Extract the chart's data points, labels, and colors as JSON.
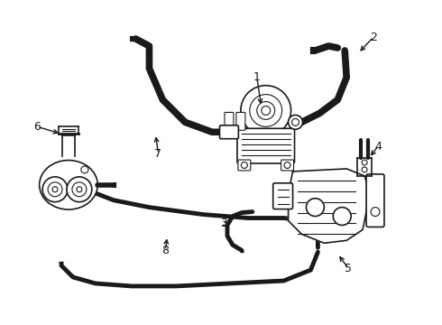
{
  "background_color": "#ffffff",
  "line_color": "#1a1a1a",
  "lw_thin": 0.8,
  "lw_med": 1.2,
  "lw_thick": 2.5,
  "lw_hose": 5.5,
  "lw_hose2": 4.0,
  "figsize": [
    4.9,
    3.6
  ],
  "dpi": 100
}
